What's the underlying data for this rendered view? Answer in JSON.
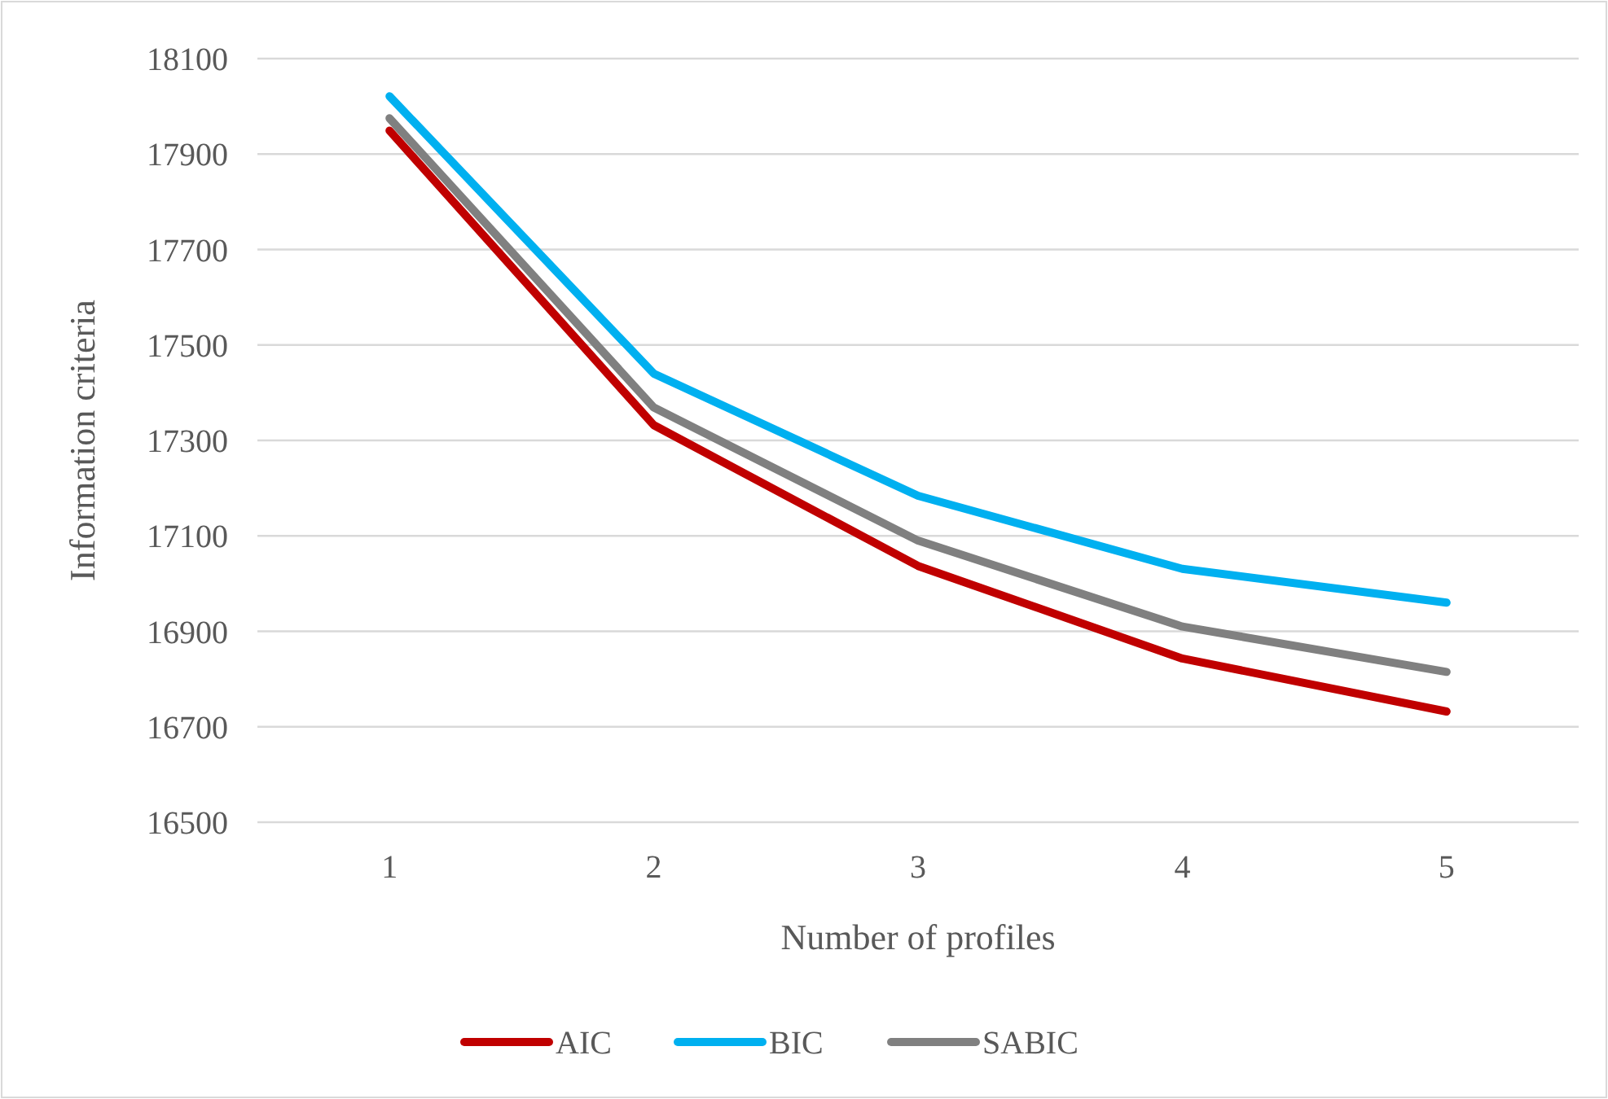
{
  "chart_data": {
    "type": "line",
    "xlabel": "Number of profiles",
    "ylabel": "Information criteria",
    "categories": [
      "1",
      "2",
      "3",
      "4",
      "5"
    ],
    "series": [
      {
        "name": "AIC",
        "color": "#c00000",
        "values": [
          17949,
          17332,
          17037,
          16843,
          16732
        ]
      },
      {
        "name": "BIC",
        "color": "#00b0f0",
        "values": [
          18021,
          17440,
          17184,
          17031,
          16960
        ]
      },
      {
        "name": "SABIC",
        "color": "#808080",
        "values": [
          17975,
          17369,
          17090,
          16910,
          16815
        ]
      }
    ],
    "ylim": [
      16500,
      18100
    ],
    "yticks": [
      16500,
      16700,
      16900,
      17100,
      17300,
      17500,
      17700,
      17900,
      18100
    ],
    "grid": "y",
    "legend": "bottom",
    "marker": "none",
    "line_style": "solid"
  }
}
